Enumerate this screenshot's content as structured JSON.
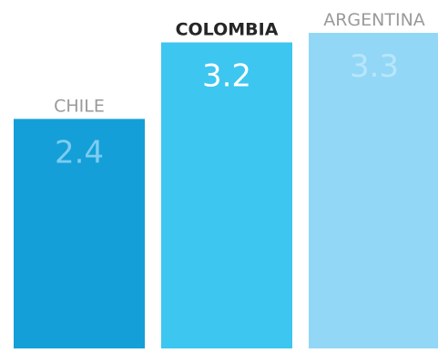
{
  "chart_data": {
    "type": "bar",
    "title": "",
    "xlabel": "",
    "ylabel": "",
    "categories": [
      "CHILE",
      "COLOMBIA",
      "ARGENTINA"
    ],
    "values": [
      2.4,
      3.2,
      3.3
    ],
    "value_labels": [
      "2.4",
      "3.2",
      "3.3"
    ],
    "highlighted_category": "COLOMBIA",
    "ylim": [
      0,
      3.3
    ],
    "grid": false,
    "legend": "none",
    "colors": {
      "bars": [
        "#149fd8",
        "#3dc6f0",
        "#93d7f6"
      ],
      "value_labels": [
        "#7ccdf0",
        "#ffffff",
        "#b8e6fa"
      ],
      "category_labels": [
        "#9a9a9a",
        "#262626",
        "#9a9a9a"
      ]
    }
  }
}
